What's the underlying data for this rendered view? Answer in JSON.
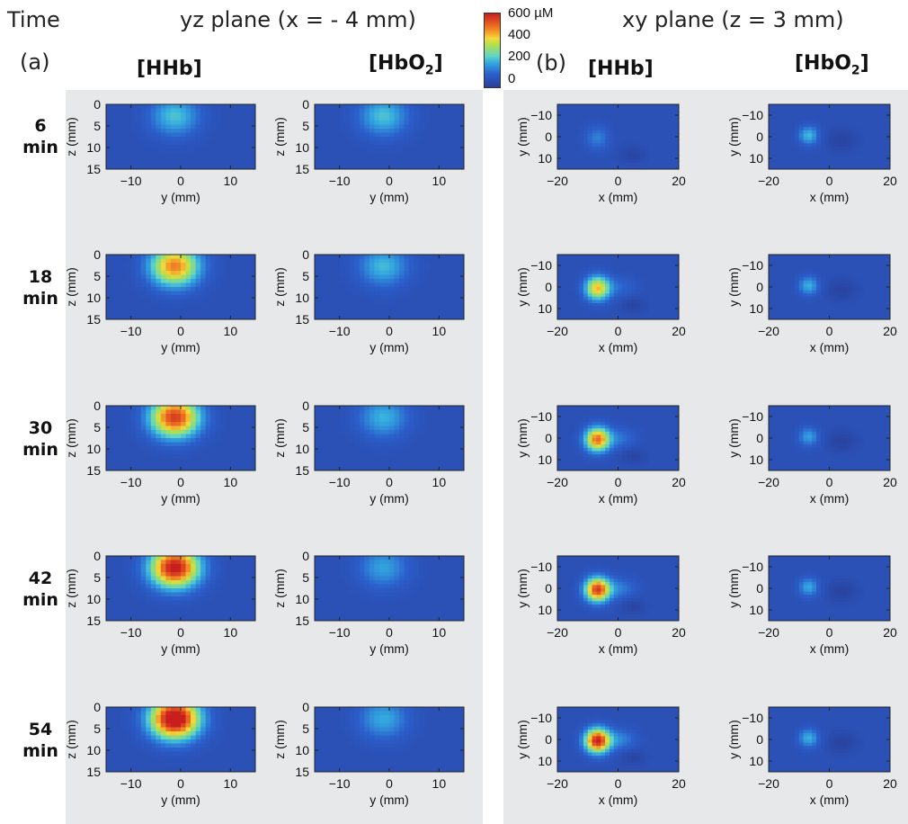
{
  "header": {
    "time_label": "Time",
    "left_title": "yz plane (x = - 4 mm)",
    "right_title": "xy plane (z = 3 mm)",
    "panel_a": "(a)",
    "panel_b": "(b)"
  },
  "columns": {
    "hhb": "[HHb]",
    "hbo2_main": "[HbO",
    "hbo2_sub": "2",
    "hbo2_end": "]"
  },
  "times": [
    {
      "value": "6",
      "unit": "min"
    },
    {
      "value": "18",
      "unit": "min"
    },
    {
      "value": "30",
      "unit": "min"
    },
    {
      "value": "42",
      "unit": "min"
    },
    {
      "value": "54",
      "unit": "min"
    }
  ],
  "colorbar": {
    "labels": [
      "600 µM",
      "400",
      "200",
      "0"
    ],
    "range": [
      0,
      600
    ],
    "colors": [
      "#2a3f9a",
      "#2b5fcc",
      "#33a8e0",
      "#5fd4c6",
      "#b5e04a",
      "#f5d83a",
      "#f07a22",
      "#c81e1e"
    ]
  },
  "chart_data": [
    {
      "type": "heatmap",
      "plane": "yz",
      "xlabel": "y (mm)",
      "ylabel": "z (mm)",
      "xlim": [
        -15,
        15
      ],
      "ylim": [
        0,
        15
      ],
      "xticks": [
        "-10",
        "0",
        "10"
      ],
      "xtick_values": [
        -10,
        0,
        10
      ],
      "yticks": [
        "0",
        "5",
        "10",
        "15"
      ],
      "ytick_values": [
        0,
        5,
        10,
        15
      ],
      "species": "HHb",
      "peak_concentration_uM": [
        230,
        480,
        560,
        620,
        680
      ]
    },
    {
      "type": "heatmap",
      "plane": "yz",
      "xlabel": "y (mm)",
      "ylabel": "z (mm)",
      "xlim": [
        -15,
        15
      ],
      "ylim": [
        0,
        15
      ],
      "xticks": [
        "-10",
        "0",
        "10"
      ],
      "xtick_values": [
        -10,
        0,
        10
      ],
      "yticks": [
        "0",
        "5",
        "10",
        "15"
      ],
      "ytick_values": [
        0,
        5,
        10,
        15
      ],
      "species": "HbO2",
      "peak_concentration_uM": [
        230,
        220,
        210,
        190,
        200
      ]
    },
    {
      "type": "heatmap",
      "plane": "xy",
      "xlabel": "x (mm)",
      "ylabel": "y (mm)",
      "xlim": [
        -20,
        20
      ],
      "ylim": [
        -15,
        15
      ],
      "xticks": [
        "-20",
        "0",
        "20"
      ],
      "xtick_values": [
        -20,
        0,
        20
      ],
      "yticks": [
        "-10",
        "0",
        "10"
      ],
      "ytick_values": [
        -10,
        0,
        10
      ],
      "species": "HHb",
      "peak_concentration_uM": [
        150,
        420,
        500,
        560,
        600
      ]
    },
    {
      "type": "heatmap",
      "plane": "xy",
      "xlabel": "x (mm)",
      "ylabel": "y (mm)",
      "xlim": [
        -20,
        20
      ],
      "ylim": [
        -15,
        15
      ],
      "xticks": [
        "-20",
        "0",
        "20"
      ],
      "xtick_values": [
        -20,
        0,
        20
      ],
      "yticks": [
        "-10",
        "0",
        "10"
      ],
      "ytick_values": [
        -10,
        0,
        10
      ],
      "species": "HbO2",
      "peak_concentration_uM": [
        220,
        210,
        190,
        200,
        210
      ]
    }
  ]
}
